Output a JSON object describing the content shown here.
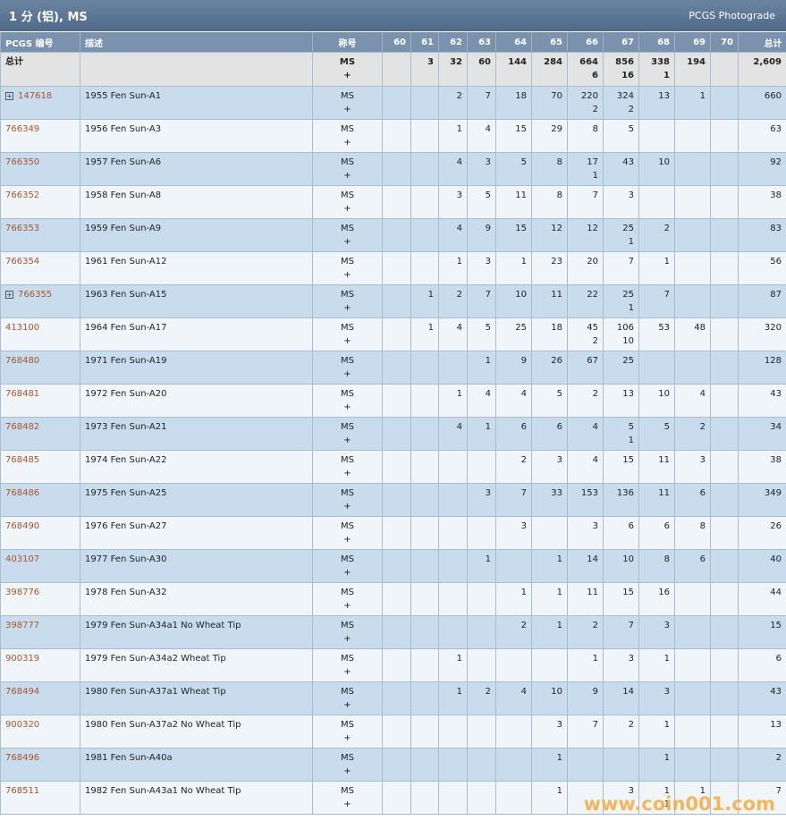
{
  "header": {
    "title": "1 分 (铝), MS",
    "subtitle": "PCGS Photograde"
  },
  "table": {
    "columns": [
      "PCGS 编号",
      "描述",
      "称号",
      "60",
      "61",
      "62",
      "63",
      "64",
      "65",
      "66",
      "67",
      "68",
      "69",
      "70",
      "总计"
    ],
    "total": {
      "label": "总计",
      "designation": [
        "MS",
        "+"
      ],
      "grades": [
        null,
        3,
        32,
        60,
        144,
        284,
        [
          664,
          6
        ],
        [
          856,
          16
        ],
        [
          338,
          1
        ],
        194,
        null
      ],
      "sum": "2,609"
    },
    "rows": [
      {
        "id": "147618",
        "expand": true,
        "desc": "1955 Fen Sun-A1",
        "designation": [
          "MS",
          "+"
        ],
        "grades": [
          null,
          null,
          2,
          7,
          18,
          70,
          [
            220,
            2
          ],
          [
            324,
            2
          ],
          13,
          1,
          null
        ],
        "sum": 660
      },
      {
        "id": "766349",
        "desc": "1956 Fen Sun-A3",
        "designation": [
          "MS",
          "+"
        ],
        "grades": [
          null,
          null,
          1,
          4,
          15,
          29,
          8,
          5,
          null,
          null,
          null
        ],
        "sum": 63
      },
      {
        "id": "766350",
        "desc": "1957 Fen Sun-A6",
        "designation": [
          "MS",
          "+"
        ],
        "grades": [
          null,
          null,
          4,
          3,
          5,
          8,
          [
            17,
            1
          ],
          43,
          10,
          null,
          null
        ],
        "sum": 92
      },
      {
        "id": "766352",
        "desc": "1958 Fen Sun-A8",
        "designation": [
          "MS",
          "+"
        ],
        "grades": [
          null,
          null,
          3,
          5,
          11,
          8,
          7,
          3,
          null,
          null,
          null
        ],
        "sum": 38
      },
      {
        "id": "766353",
        "desc": "1959 Fen Sun-A9",
        "designation": [
          "MS",
          "+"
        ],
        "grades": [
          null,
          null,
          4,
          9,
          15,
          12,
          12,
          [
            25,
            1
          ],
          2,
          null,
          null
        ],
        "sum": 83
      },
      {
        "id": "766354",
        "desc": "1961 Fen Sun-A12",
        "designation": [
          "MS",
          "+"
        ],
        "grades": [
          null,
          null,
          1,
          3,
          1,
          23,
          20,
          7,
          1,
          null,
          null
        ],
        "sum": 56
      },
      {
        "id": "766355",
        "expand": true,
        "desc": "1963 Fen Sun-A15",
        "designation": [
          "MS",
          "+"
        ],
        "grades": [
          null,
          1,
          2,
          7,
          10,
          11,
          22,
          [
            25,
            1
          ],
          7,
          null,
          null
        ],
        "sum": 87
      },
      {
        "id": "413100",
        "desc": "1964 Fen Sun-A17",
        "designation": [
          "MS",
          "+"
        ],
        "grades": [
          null,
          1,
          4,
          5,
          25,
          18,
          [
            45,
            2
          ],
          [
            106,
            10
          ],
          53,
          48,
          null
        ],
        "sum": 320
      },
      {
        "id": "768480",
        "desc": "1971 Fen Sun-A19",
        "designation": [
          "MS",
          "+"
        ],
        "grades": [
          null,
          null,
          null,
          1,
          9,
          26,
          67,
          25,
          null,
          null,
          null
        ],
        "sum": 128
      },
      {
        "id": "768481",
        "desc": "1972 Fen Sun-A20",
        "designation": [
          "MS",
          "+"
        ],
        "grades": [
          null,
          null,
          1,
          4,
          4,
          5,
          2,
          13,
          10,
          4,
          null
        ],
        "sum": 43
      },
      {
        "id": "768482",
        "desc": "1973 Fen Sun-A21",
        "designation": [
          "MS",
          "+"
        ],
        "grades": [
          null,
          null,
          4,
          1,
          6,
          6,
          4,
          [
            5,
            1
          ],
          5,
          2,
          null
        ],
        "sum": 34
      },
      {
        "id": "768485",
        "desc": "1974 Fen Sun-A22",
        "designation": [
          "MS",
          "+"
        ],
        "grades": [
          null,
          null,
          null,
          null,
          2,
          3,
          4,
          15,
          11,
          3,
          null
        ],
        "sum": 38
      },
      {
        "id": "768486",
        "desc": "1975 Fen Sun-A25",
        "designation": [
          "MS",
          "+"
        ],
        "grades": [
          null,
          null,
          null,
          3,
          7,
          33,
          153,
          136,
          11,
          6,
          null
        ],
        "sum": 349
      },
      {
        "id": "768490",
        "desc": "1976 Fen Sun-A27",
        "designation": [
          "MS",
          "+"
        ],
        "grades": [
          null,
          null,
          null,
          null,
          3,
          null,
          3,
          6,
          6,
          8,
          null
        ],
        "sum": 26
      },
      {
        "id": "403107",
        "desc": "1977 Fen Sun-A30",
        "designation": [
          "MS",
          "+"
        ],
        "grades": [
          null,
          null,
          null,
          1,
          null,
          1,
          14,
          10,
          8,
          6,
          null
        ],
        "sum": 40
      },
      {
        "id": "398776",
        "desc": "1978 Fen Sun-A32",
        "designation": [
          "MS",
          "+"
        ],
        "grades": [
          null,
          null,
          null,
          null,
          1,
          1,
          11,
          15,
          16,
          null,
          null
        ],
        "sum": 44
      },
      {
        "id": "398777",
        "desc": "1979 Fen Sun-A34a1 No Wheat Tip",
        "designation": [
          "MS",
          "+"
        ],
        "grades": [
          null,
          null,
          null,
          null,
          2,
          1,
          2,
          7,
          3,
          null,
          null
        ],
        "sum": 15
      },
      {
        "id": "900319",
        "desc": "1979 Fen Sun-A34a2 Wheat Tip",
        "designation": [
          "MS",
          "+"
        ],
        "grades": [
          null,
          null,
          1,
          null,
          null,
          null,
          1,
          3,
          1,
          null,
          null
        ],
        "sum": 6
      },
      {
        "id": "768494",
        "desc": "1980 Fen Sun-A37a1 Wheat Tip",
        "designation": [
          "MS",
          "+"
        ],
        "grades": [
          null,
          null,
          1,
          2,
          4,
          10,
          9,
          14,
          3,
          null,
          null
        ],
        "sum": 43
      },
      {
        "id": "900320",
        "desc": "1980 Fen Sun-A37a2 No Wheat Tip",
        "designation": [
          "MS",
          "+"
        ],
        "grades": [
          null,
          null,
          null,
          null,
          null,
          3,
          7,
          2,
          1,
          null,
          null
        ],
        "sum": 13
      },
      {
        "id": "768496",
        "desc": "1981 Fen Sun-A40a",
        "designation": [
          "MS",
          "+"
        ],
        "grades": [
          null,
          null,
          null,
          null,
          null,
          1,
          null,
          null,
          1,
          null,
          null
        ],
        "sum": 2
      },
      {
        "id": "768511",
        "desc": "1982 Fen Sun-A43a1 No Wheat Tip",
        "designation": [
          "MS",
          "+"
        ],
        "grades": [
          null,
          null,
          null,
          null,
          null,
          1,
          null,
          3,
          [
            1,
            1
          ],
          1,
          null
        ],
        "sum": 7
      }
    ]
  },
  "watermark": "www.coin001.com"
}
